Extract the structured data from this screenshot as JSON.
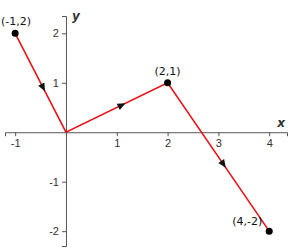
{
  "chart_data": {
    "type": "line",
    "x": [
      -1,
      0,
      2,
      4
    ],
    "values": [
      2,
      0,
      1,
      -2
    ],
    "color": "#e8141b",
    "xlim": [
      -1.2,
      4.35
    ],
    "ylim": [
      -2.3,
      2.35
    ],
    "xticks": [
      -1,
      1,
      2,
      3,
      4
    ],
    "yticks": [
      -2,
      -1,
      1,
      2
    ],
    "x_label": "x",
    "y_label": "y",
    "marker": "arrow",
    "annotations": [
      {
        "text": "(-1,2)",
        "x": -1,
        "y": 2
      },
      {
        "text": "(2,1)",
        "x": 2,
        "y": 1
      },
      {
        "text": "(4,-2)",
        "x": 4,
        "y": -2
      }
    ]
  }
}
